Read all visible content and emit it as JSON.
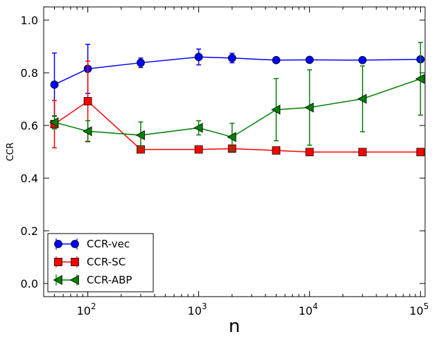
{
  "chart_data": {
    "type": "line",
    "title": "",
    "xlabel": "n",
    "ylabel": "CCR",
    "xscale": "log",
    "xlim": [
      40,
      110000
    ],
    "ylim": [
      -0.05,
      1.05
    ],
    "yticks": [
      0.0,
      0.2,
      0.4,
      0.6,
      0.8,
      1.0
    ],
    "ytick_labels": [
      "0.0",
      "0.2",
      "0.4",
      "0.6",
      "0.8",
      "1.0"
    ],
    "xticks": [
      100,
      1000,
      10000,
      100000
    ],
    "xtick_labels": [
      {
        "base": "10",
        "exp": "2"
      },
      {
        "base": "10",
        "exp": "3"
      },
      {
        "base": "10",
        "exp": "4"
      },
      {
        "base": "10",
        "exp": "5"
      }
    ],
    "legend_position": "bottom-left",
    "series": [
      {
        "name": "CCR-vec",
        "color": "#0000ff",
        "marker": "circle",
        "x": [
          50,
          100,
          300,
          1000,
          2000,
          5000,
          10000,
          30000,
          100000
        ],
        "y": [
          0.755,
          0.815,
          0.838,
          0.86,
          0.856,
          0.848,
          0.849,
          0.848,
          0.851
        ],
        "err": [
          0.12,
          0.093,
          0.018,
          0.03,
          0.018,
          0.007,
          0.007,
          0.006,
          0.007
        ]
      },
      {
        "name": "CCR-SC",
        "color": "#ff0000",
        "marker": "square",
        "x": [
          50,
          100,
          300,
          1000,
          2000,
          5000,
          10000,
          30000,
          100000
        ],
        "y": [
          0.605,
          0.692,
          0.509,
          0.509,
          0.512,
          0.505,
          0.499,
          0.499,
          0.499
        ],
        "err": [
          0.09,
          0.152,
          0.006,
          0.007,
          0.006,
          0.006,
          0.003,
          0.003,
          0.003
        ]
      },
      {
        "name": "CCR-ABP",
        "color": "#007f00",
        "marker": "triangle-left",
        "x": [
          50,
          100,
          300,
          1000,
          2000,
          5000,
          10000,
          30000,
          100000
        ],
        "y": [
          0.612,
          0.578,
          0.563,
          0.591,
          0.556,
          0.66,
          0.668,
          0.701,
          0.777
        ],
        "err": [
          0.025,
          0.04,
          0.05,
          0.027,
          0.052,
          0.118,
          0.143,
          0.125,
          0.138
        ]
      }
    ]
  }
}
